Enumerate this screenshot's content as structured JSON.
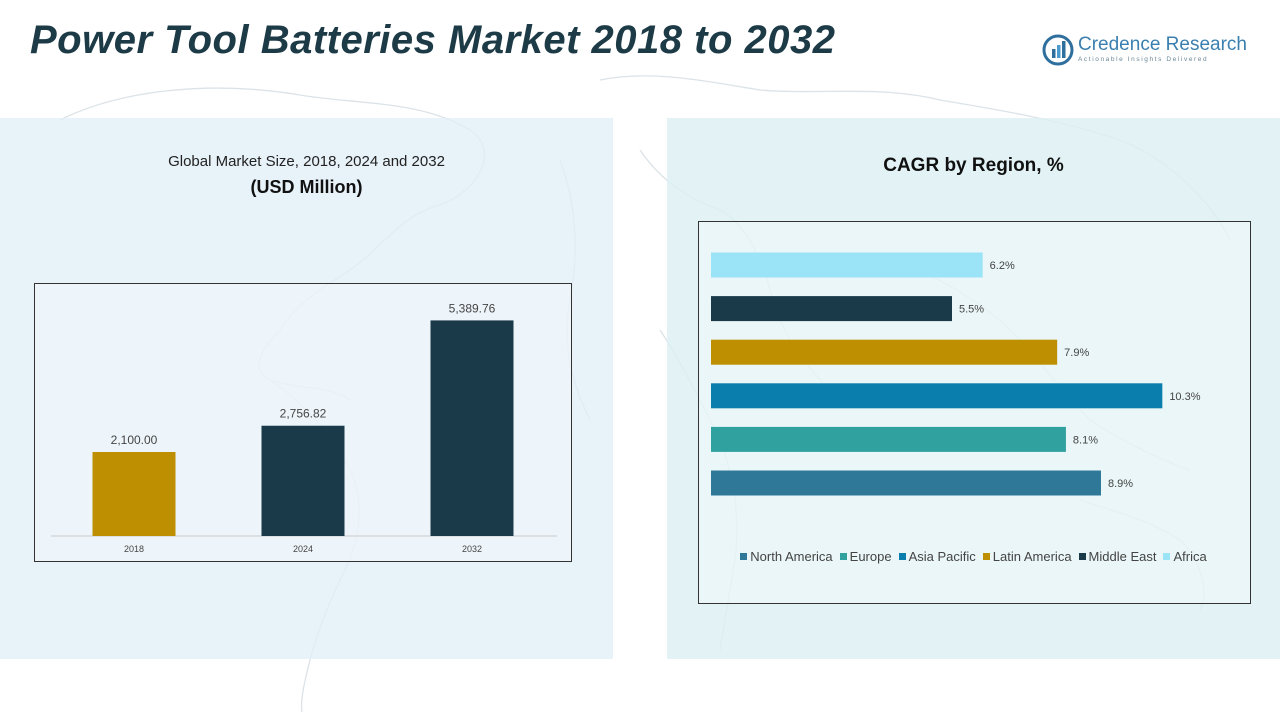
{
  "page_title": "Power Tool Batteries Market 2018 to 2032",
  "logo": {
    "name": "Credence Research",
    "tagline": "Actionable Insights Delivered"
  },
  "left_panel": {
    "subtitle": "Global Market Size, 2018, 2024 and 2032",
    "unit": "(USD Million)"
  },
  "right_panel": {
    "title": "CAGR by Region, %"
  },
  "chart_data": [
    {
      "type": "bar",
      "categories": [
        "2018",
        "2024",
        "2032"
      ],
      "values": [
        2100.0,
        2756.82,
        5389.76
      ],
      "value_labels": [
        "2,100.00",
        "2,756.82",
        "5,389.76"
      ],
      "bar_colors": [
        "#be8f00",
        "#1b3a49",
        "#1b3a49"
      ],
      "title": "Global Market Size, 2018, 2024 and 2032",
      "subtitle": "(USD Million)",
      "ylim": [
        0,
        5800
      ],
      "grid": false
    },
    {
      "type": "bar",
      "orientation": "horizontal",
      "title": "CAGR by Region, %",
      "categories": [
        "North America",
        "Europe",
        "Asia Pacific",
        "Latin America",
        "Middle East",
        "Africa"
      ],
      "values": [
        8.9,
        8.1,
        10.3,
        7.9,
        5.5,
        6.2
      ],
      "value_labels": [
        "8.9%",
        "8.1%",
        "10.3%",
        "7.9%",
        "5.5%",
        "6.2%"
      ],
      "colors": [
        "#2f7898",
        "#30a19f",
        "#0a7fad",
        "#be8f00",
        "#1b3a49",
        "#9be3f7"
      ],
      "xlim": [
        0,
        11
      ],
      "legend_position": "bottom",
      "grid": false
    }
  ]
}
